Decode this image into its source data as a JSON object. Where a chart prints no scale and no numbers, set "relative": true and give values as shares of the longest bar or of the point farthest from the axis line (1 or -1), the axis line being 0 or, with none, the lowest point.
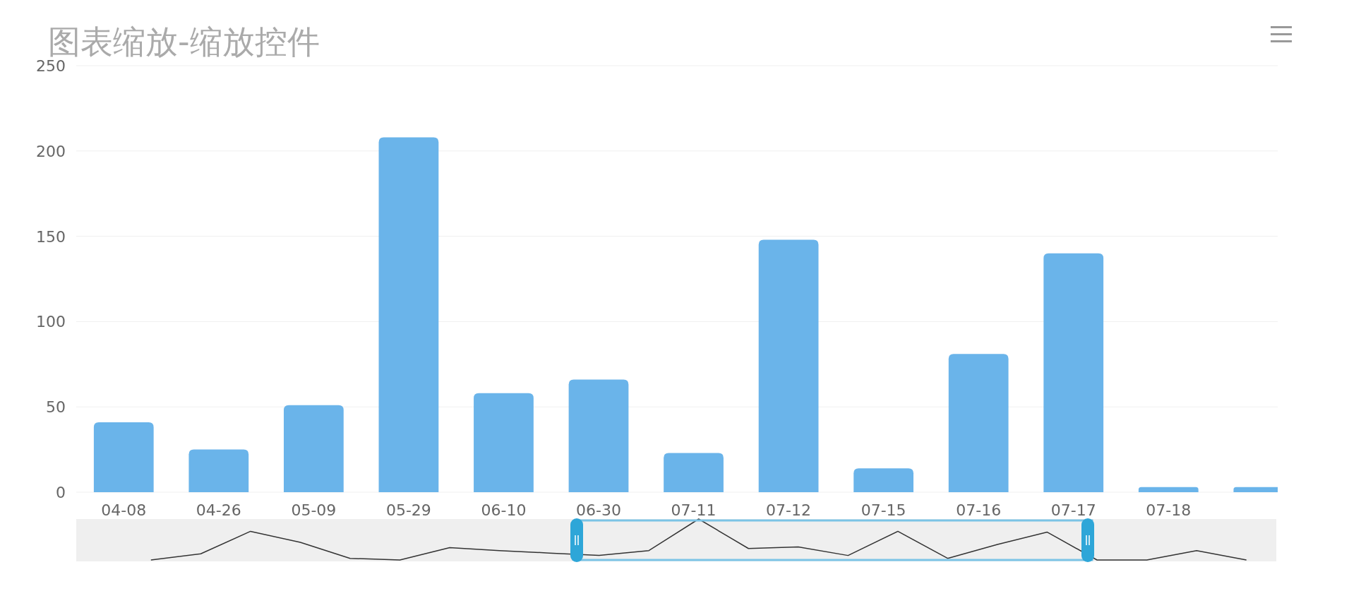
{
  "chart_data": [
    {
      "type": "bar",
      "title": "图表缩放-缩放控件",
      "categories": [
        "04-08",
        "04-26",
        "05-09",
        "05-29",
        "06-10",
        "06-30",
        "07-11",
        "07-12",
        "07-15",
        "07-16",
        "07-17",
        "07-18",
        null
      ],
      "values": [
        41,
        25,
        51,
        208,
        58,
        66,
        23,
        148,
        14,
        81,
        140,
        3,
        3
      ],
      "color": "#6ab4ea",
      "ylim": [
        0,
        250
      ],
      "yticks": [
        0,
        50,
        100,
        150,
        200,
        250
      ],
      "grid": "y"
    },
    {
      "type": "line",
      "relative": true,
      "categories": [
        null,
        null,
        null,
        null,
        null,
        null,
        null,
        null,
        null,
        null,
        null,
        null,
        null,
        null,
        null,
        null,
        null,
        null,
        null,
        null,
        null,
        null,
        null
      ],
      "values": [
        0,
        0.15,
        0.7,
        0.43,
        0.04,
        0,
        0.3,
        0.23,
        0.17,
        0.11,
        0.23,
        1,
        0.28,
        0.32,
        0.11,
        0.7,
        0.04,
        0.38,
        0.68,
        0,
        0,
        0.23,
        0
      ],
      "color": "#333333"
    }
  ]
}
